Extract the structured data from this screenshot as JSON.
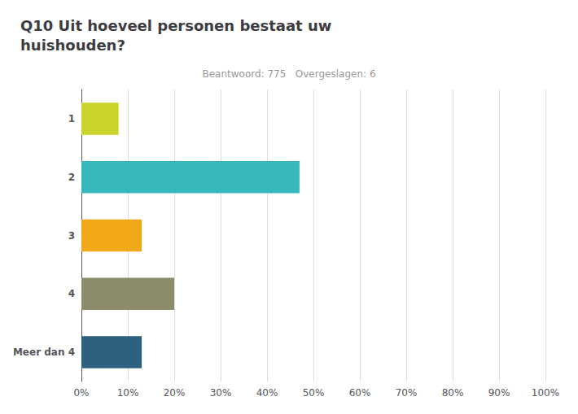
{
  "chart_data": {
    "type": "bar",
    "title": "Q10 Uit hoeveel personen bestaat uw\nhuishouden?",
    "subtitle": "Beantwoord: 775   Overgeslagen: 6",
    "orientation": "horizontal",
    "categories": [
      "1",
      "2",
      "3",
      "4",
      "Meer dan 4"
    ],
    "values": [
      8.0,
      47.0,
      13.0,
      20.0,
      13.0
    ],
    "colors": [
      "#c8d42b",
      "#38b8bc",
      "#f0a818",
      "#8c8c6c",
      "#2e6080"
    ],
    "xlim": [
      0,
      100
    ],
    "xticks": [
      {
        "value": 0,
        "label": "0%"
      },
      {
        "value": 10,
        "label": "10%"
      },
      {
        "value": 20,
        "label": "20%"
      },
      {
        "value": 30,
        "label": "30%"
      },
      {
        "value": 40,
        "label": "40%"
      },
      {
        "value": 50,
        "label": "50%"
      },
      {
        "value": 60,
        "label": "60%"
      },
      {
        "value": 70,
        "label": "70%"
      },
      {
        "value": 80,
        "label": "80%"
      },
      {
        "value": 90,
        "label": "90%"
      },
      {
        "value": 100,
        "label": "100%"
      }
    ],
    "grid": true
  }
}
